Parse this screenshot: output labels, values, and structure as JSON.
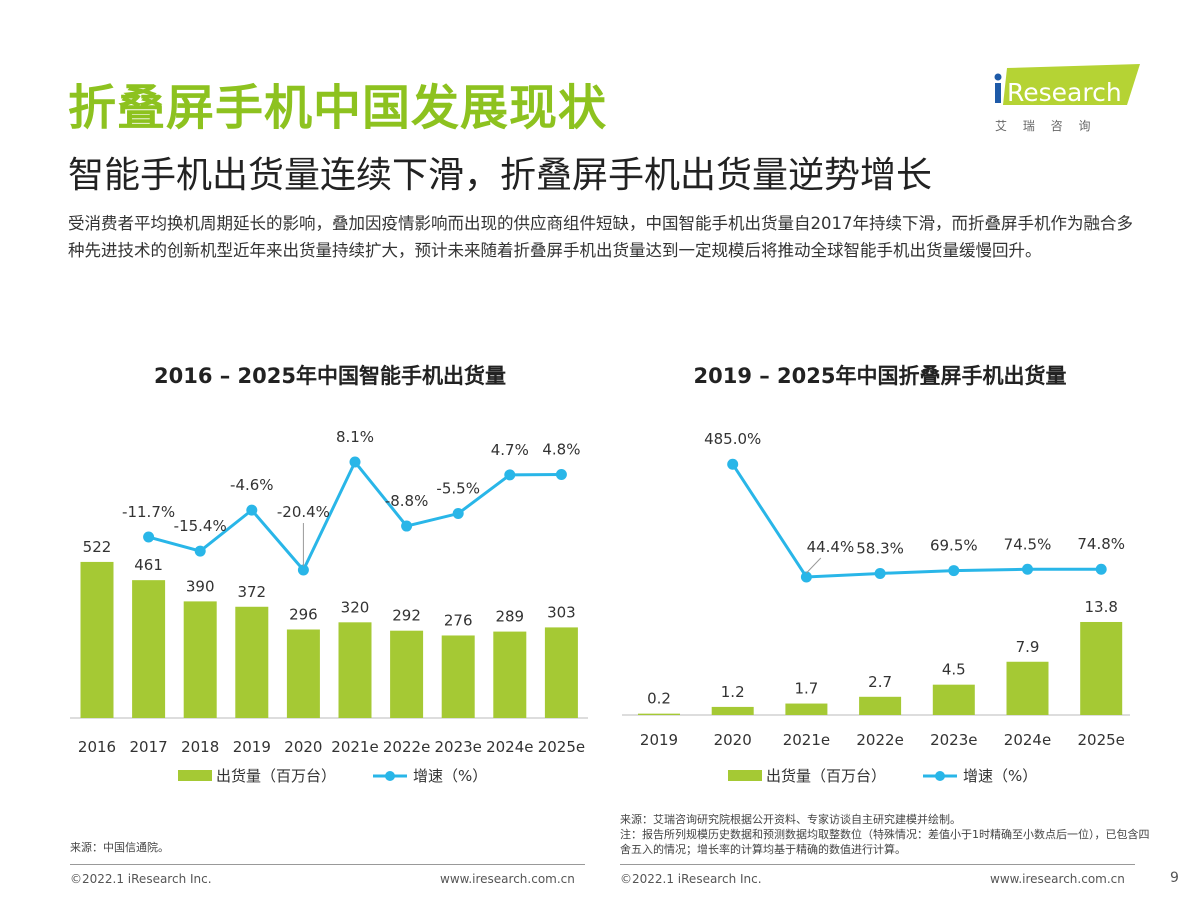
{
  "header": {
    "title": "折叠屏手机中国发展现状",
    "subtitle": "智能手机出货量连续下滑，折叠屏手机出货量逆势增长",
    "body": "受消费者平均换机周期延长的影响，叠加因疫情影响而出现的供应商组件短缺，中国智能手机出货量自2017年持续下滑，而折叠屏手机作为融合多种先进技术的创新机型近年来出货量持续扩大，预计未来随着折叠屏手机出货量达到一定规模后将推动全球智能手机出货量缓慢回升。",
    "logo_text": "iResearch",
    "logo_cn": "艾 瑞 咨 询"
  },
  "colors": {
    "accent": "#8dc21f",
    "bar": "#a5c934",
    "line": "#29b6e8"
  },
  "chart_data": [
    {
      "type": "bar+line",
      "title": "2016 – 2025年中国智能手机出货量",
      "categories": [
        "2016",
        "2017",
        "2018",
        "2019",
        "2020",
        "2021e",
        "2022e",
        "2023e",
        "2024e",
        "2025e"
      ],
      "series": [
        {
          "name": "出货量（百万台）",
          "type": "bar",
          "values": [
            522,
            461,
            390,
            372,
            296,
            320,
            292,
            276,
            289,
            303
          ],
          "labels": [
            "522",
            "461",
            "390",
            "372",
            "296",
            "320",
            "292",
            "276",
            "289",
            "303"
          ]
        },
        {
          "name": "增速（%）",
          "type": "line",
          "values": [
            null,
            -11.7,
            -15.4,
            -4.6,
            -20.4,
            8.1,
            -8.8,
            -5.5,
            4.7,
            4.8
          ],
          "labels": [
            "",
            "-11.7%",
            "-15.4%",
            "-4.6%",
            "-20.4%",
            "8.1%",
            "-8.8%",
            "-5.5%",
            "4.7%",
            "4.8%"
          ]
        }
      ],
      "legend": "bottom",
      "grid": false,
      "source": "来源：中国信通院。"
    },
    {
      "type": "bar+line",
      "title": "2019 – 2025年中国折叠屏手机出货量",
      "categories": [
        "2019",
        "2020",
        "2021e",
        "2022e",
        "2023e",
        "2024e",
        "2025e"
      ],
      "series": [
        {
          "name": "出货量（百万台）",
          "type": "bar",
          "values": [
            0.2,
            1.2,
            1.7,
            2.7,
            4.5,
            7.9,
            13.8
          ],
          "labels": [
            "0.2",
            "1.2",
            "1.7",
            "2.7",
            "4.5",
            "7.9",
            "13.8"
          ]
        },
        {
          "name": "增速（%）",
          "type": "line",
          "values": [
            null,
            485.0,
            44.4,
            58.3,
            69.5,
            74.5,
            74.8
          ],
          "labels": [
            "",
            "485.0%",
            "44.4%",
            "58.3%",
            "69.5%",
            "74.5%",
            "74.8%"
          ]
        }
      ],
      "legend": "bottom",
      "grid": false,
      "source": "来源：艾瑞咨询研究院根据公开资料、专家访谈自主研究建模并绘制。",
      "note": "注：报告所列规模历史数据和预测数据均取整数位（特殊情况：差值小于1时精确至小数点后一位），已包含四舍五入的情况；增长率的计算均基于精确的数值进行计算。"
    }
  ],
  "footer": {
    "copyright": "©2022.1 iResearch Inc.",
    "url": "www.iresearch.com.cn",
    "page": "9"
  }
}
